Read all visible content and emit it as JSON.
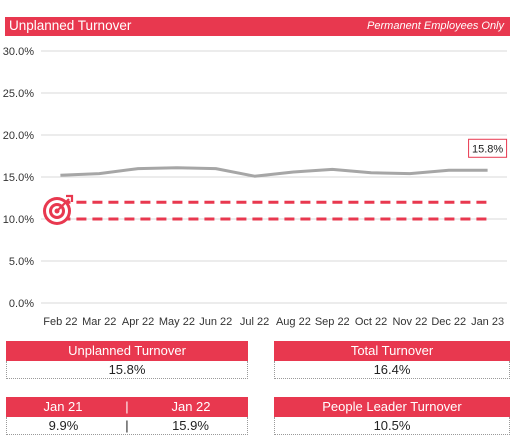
{
  "header": {
    "title": "Unplanned Turnover",
    "subtitle": "Permanent Employees Only"
  },
  "chart_data": {
    "type": "line",
    "categories": [
      "Feb 22",
      "Mar 22",
      "Apr 22",
      "May 22",
      "Jun 22",
      "Jul 22",
      "Aug 22",
      "Sep 22",
      "Oct 22",
      "Nov 22",
      "Dec 22",
      "Jan 23"
    ],
    "series": [
      {
        "values": [
          15.2,
          15.4,
          16.0,
          16.1,
          16.0,
          15.1,
          15.6,
          15.9,
          15.5,
          15.4,
          15.8,
          15.8
        ],
        "color": "#a6a6a6"
      }
    ],
    "target_lines": [
      12.0,
      10.0
    ],
    "target_color": "#e8384f",
    "ylim": [
      0,
      30
    ],
    "yticks": [
      0,
      5,
      10,
      15,
      20,
      25,
      30
    ],
    "ytick_labels": [
      "0.0%",
      "5.0%",
      "10.0%",
      "15.0%",
      "20.0%",
      "25.0%",
      "30.0%"
    ],
    "grid": true,
    "last_value_label": "15.8%",
    "target_icon": "target-icon"
  },
  "cards": {
    "unplanned": {
      "label": "Unplanned Turnover",
      "value": "15.8%"
    },
    "total": {
      "label": "Total Turnover",
      "value": "16.4%"
    },
    "comparison": {
      "label_left": "Jan 21",
      "label_sep": "|",
      "label_right": "Jan 22",
      "value_left": "9.9%",
      "value_sep": "|",
      "value_right": "15.9%"
    },
    "people_leader": {
      "label": "People Leader Turnover",
      "value": "10.5%"
    }
  },
  "colors": {
    "accent": "#e8384f",
    "line": "#a6a6a6",
    "grid": "#d9d9d9"
  }
}
